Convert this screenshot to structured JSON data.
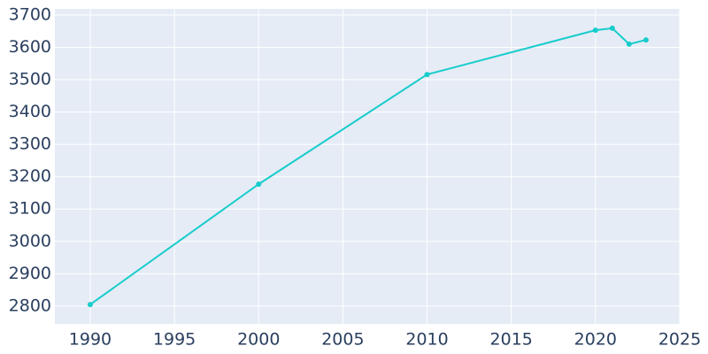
{
  "chart_data": {
    "type": "line",
    "x": [
      1990,
      2000,
      2010,
      2020,
      2021,
      2022,
      2023
    ],
    "series": [
      {
        "color": "#17cccc",
        "values": [
          2805,
          3177,
          3516,
          3653,
          3659,
          3610,
          3623
        ]
      }
    ],
    "xlim": [
      1987.9,
      2025
    ],
    "xticks": [
      1990,
      1995,
      2000,
      2005,
      2010,
      2015,
      2020,
      2025
    ],
    "ylim": [
      2745,
      3719
    ],
    "yticks": [
      2800,
      2900,
      3000,
      3100,
      3200,
      3300,
      3400,
      3500,
      3600,
      3700
    ],
    "grid": true,
    "background": "#e5ecf6"
  }
}
